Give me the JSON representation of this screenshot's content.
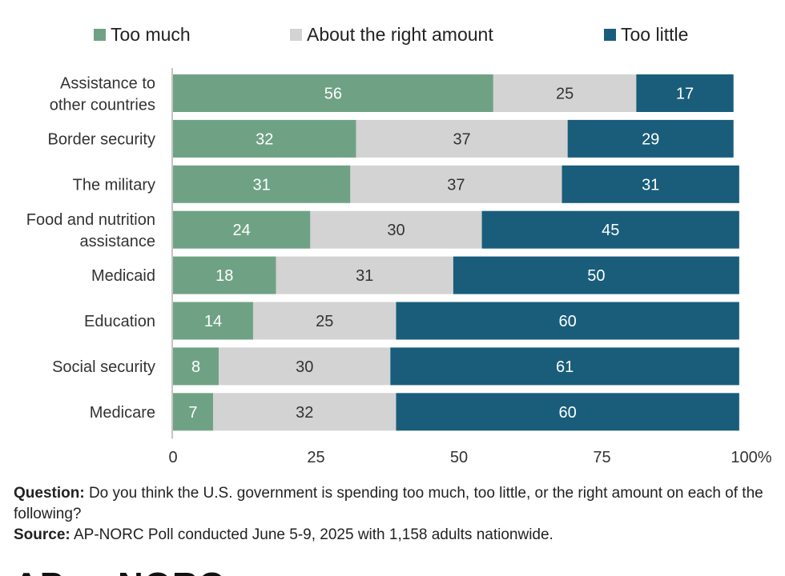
{
  "colors": {
    "too_much": "#6fa285",
    "right": "#d3d3d3",
    "too_little": "#195d7b"
  },
  "legend": [
    {
      "label": "Too much",
      "color": "#6fa285"
    },
    {
      "label": "About the right amount",
      "color": "#d3d3d3"
    },
    {
      "label": "Too little",
      "color": "#195d7b"
    }
  ],
  "chart_data": {
    "type": "bar",
    "orientation": "horizontal",
    "stacked": true,
    "categories": [
      "Assistance to other countries",
      "Border security",
      "The military",
      "Food and nutrition assistance",
      "Medicaid",
      "Education",
      "Social security",
      "Medicare"
    ],
    "series": [
      {
        "name": "Too much",
        "values": [
          56,
          32,
          31,
          24,
          18,
          14,
          8,
          7
        ]
      },
      {
        "name": "About the right amount",
        "values": [
          25,
          37,
          37,
          30,
          31,
          25,
          30,
          32
        ]
      },
      {
        "name": "Too little",
        "values": [
          17,
          29,
          31,
          45,
          50,
          60,
          61,
          60
        ]
      }
    ],
    "xlim": [
      0,
      100
    ],
    "xticks": [
      "0",
      "25",
      "50",
      "75",
      "100%"
    ],
    "grid": false,
    "legend_position": "top"
  },
  "notes": {
    "question_label": "Question:",
    "question_text": " Do you think the U.S. government is spending too much, too little, or the right amount on each of the following?",
    "source_label": "Source:",
    "source_text": " AP-NORC Poll conducted June 5-9, 2025 with 1,158 adults nationwide."
  },
  "logo": {
    "left": "AP",
    "right": "NORC"
  }
}
